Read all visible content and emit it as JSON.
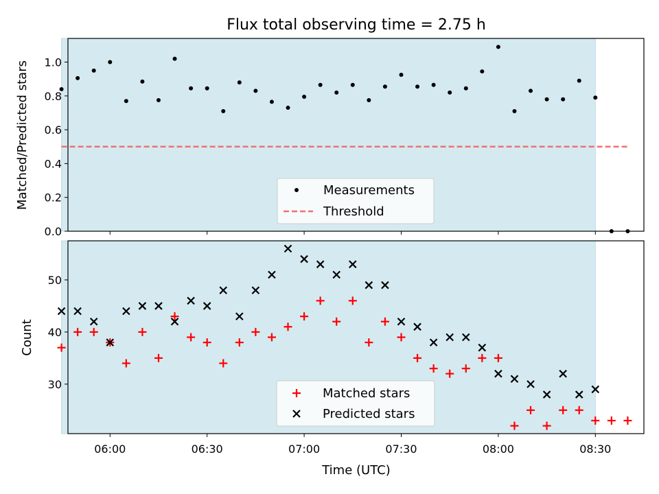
{
  "chart_data": [
    {
      "type": "scatter",
      "title": "Flux total observing time = 2.75 h",
      "xlabel": "",
      "ylabel": "Matched/Predicted stars",
      "x_axis_kind": "time",
      "xlim": [
        "05:47",
        "08:45"
      ],
      "ylim": [
        0.0,
        1.14
      ],
      "x_tick_labels": [
        "06:00",
        "06:30",
        "07:00",
        "07:30",
        "08:00",
        "08:30"
      ],
      "y_ticks": [
        0.0,
        0.2,
        0.4,
        0.6,
        0.8,
        1.0
      ],
      "y_tick_labels": [
        "0.0",
        "0.2",
        "0.4",
        "0.6",
        "0.8",
        "1.0"
      ],
      "show_x_tick_labels": false,
      "observing_window": [
        "05:45",
        "08:30"
      ],
      "grid": false,
      "legend_position": "lower center",
      "series": [
        {
          "name": "Measurements",
          "kind": "scatter",
          "marker": "dot",
          "color": "#000000",
          "x": [
            "05:45",
            "05:50",
            "05:55",
            "06:00",
            "06:05",
            "06:10",
            "06:15",
            "06:20",
            "06:25",
            "06:30",
            "06:35",
            "06:40",
            "06:45",
            "06:50",
            "06:55",
            "07:00",
            "07:05",
            "07:10",
            "07:15",
            "07:20",
            "07:25",
            "07:30",
            "07:35",
            "07:40",
            "07:45",
            "07:50",
            "07:55",
            "08:00",
            "08:05",
            "08:10",
            "08:15",
            "08:20",
            "08:25",
            "08:30",
            "08:35",
            "08:40"
          ],
          "y": [
            0.84,
            0.905,
            0.95,
            1.0,
            0.77,
            0.885,
            0.775,
            1.02,
            0.845,
            0.845,
            0.71,
            0.88,
            0.83,
            0.765,
            0.73,
            0.795,
            0.865,
            0.82,
            0.865,
            0.775,
            0.855,
            0.925,
            0.855,
            0.865,
            0.82,
            0.845,
            0.945,
            1.09,
            0.71,
            0.83,
            0.78,
            0.78,
            0.89,
            0.79,
            0.0,
            0.0
          ]
        },
        {
          "name": "Threshold",
          "kind": "line",
          "style": "dashed",
          "color": "#f07070",
          "x": [
            "05:45",
            "08:40"
          ],
          "y": [
            0.5,
            0.5
          ]
        }
      ]
    },
    {
      "type": "scatter",
      "title": "",
      "xlabel": "Time (UTC)",
      "ylabel": "Count",
      "x_axis_kind": "time",
      "xlim": [
        "05:47",
        "08:45"
      ],
      "ylim": [
        20.5,
        57.5
      ],
      "x_tick_labels": [
        "06:00",
        "06:30",
        "07:00",
        "07:30",
        "08:00",
        "08:30"
      ],
      "y_ticks": [
        30,
        40,
        50
      ],
      "y_tick_labels": [
        "30",
        "40",
        "50"
      ],
      "show_x_tick_labels": true,
      "observing_window": [
        "05:45",
        "08:30"
      ],
      "grid": false,
      "legend_position": "lower center",
      "series": [
        {
          "name": "Matched stars",
          "kind": "scatter",
          "marker": "plus",
          "color": "#ff0000",
          "x": [
            "05:45",
            "05:50",
            "05:55",
            "06:00",
            "06:05",
            "06:10",
            "06:15",
            "06:20",
            "06:25",
            "06:30",
            "06:35",
            "06:40",
            "06:45",
            "06:50",
            "06:55",
            "07:00",
            "07:05",
            "07:10",
            "07:15",
            "07:20",
            "07:25",
            "07:30",
            "07:35",
            "07:40",
            "07:45",
            "07:50",
            "07:55",
            "08:00",
            "08:05",
            "08:10",
            "08:15",
            "08:20",
            "08:25",
            "08:30",
            "08:35",
            "08:40"
          ],
          "y": [
            37,
            40,
            40,
            38,
            34,
            40,
            35,
            43,
            39,
            38,
            34,
            38,
            40,
            39,
            41,
            43,
            46,
            42,
            46,
            38,
            42,
            39,
            35,
            33,
            32,
            33,
            35,
            35,
            22,
            25,
            22,
            25,
            25,
            23,
            23,
            23
          ]
        },
        {
          "name": "Predicted stars",
          "kind": "scatter",
          "marker": "x",
          "color": "#000000",
          "x": [
            "05:45",
            "05:50",
            "05:55",
            "06:00",
            "06:05",
            "06:10",
            "06:15",
            "06:20",
            "06:25",
            "06:30",
            "06:35",
            "06:40",
            "06:45",
            "06:50",
            "06:55",
            "07:00",
            "07:05",
            "07:10",
            "07:15",
            "07:20",
            "07:25",
            "07:30",
            "07:35",
            "07:40",
            "07:45",
            "07:50",
            "07:55",
            "08:00",
            "08:05",
            "08:10",
            "08:15",
            "08:20",
            "08:25",
            "08:30"
          ],
          "y": [
            44,
            44,
            42,
            38,
            44,
            45,
            45,
            42,
            46,
            45,
            48,
            43,
            48,
            51,
            56,
            54,
            53,
            51,
            53,
            49,
            49,
            42,
            41,
            38,
            39,
            39,
            37,
            32,
            31,
            30,
            28,
            32,
            28,
            29
          ]
        }
      ]
    }
  ],
  "colors": {
    "window_fill": "#d4eaf0",
    "window_edge": "#b9dce6",
    "threshold": "#f07070",
    "matched": "#ff0000",
    "predicted": "#000000",
    "measurement": "#000000"
  }
}
